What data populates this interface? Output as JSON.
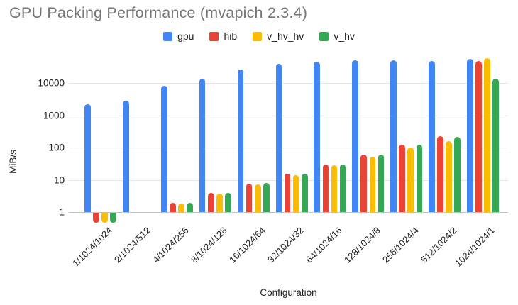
{
  "title": "GPU Packing Performance (mvapich 2.3.4)",
  "colors": {
    "title_text": "#757575",
    "axis_text": "#202124",
    "gridline": "#e6e6e6",
    "baseline": "#c4c4c4",
    "background": "#ffffff"
  },
  "chart_data": {
    "type": "bar",
    "title": "GPU Packing Performance (mvapich 2.3.4)",
    "xlabel": "Configuration",
    "ylabel": "MiB/s",
    "y_scale": "log",
    "y_ticks": [
      1,
      10,
      100,
      1000,
      10000
    ],
    "ylim": [
      0.4,
      100000
    ],
    "grid": true,
    "legend_position": "top",
    "categories": [
      "1/1024/1024",
      "2/1024/512",
      "4/1024/256",
      "8/1024/128",
      "16/1024/64",
      "32/1024/32",
      "64/1024/16",
      "128/1024/8",
      "256/1024/4",
      "512/1024/2",
      "1024/1024/1"
    ],
    "series": [
      {
        "name": "gpu",
        "color": "#4285F4",
        "values": [
          2200,
          2800,
          8300,
          13500,
          26000,
          40000,
          46000,
          50000,
          51000,
          49000,
          57000
        ]
      },
      {
        "name": "hib",
        "color": "#EA4335",
        "values": [
          0.5,
          null,
          1.9,
          4,
          7.5,
          15,
          29,
          60,
          120,
          230,
          47000
        ]
      },
      {
        "name": "v_hv_hv",
        "color": "#FBBC04",
        "values": [
          0.5,
          null,
          1.8,
          3.8,
          7.3,
          14,
          28,
          53,
          100,
          160,
          60000
        ]
      },
      {
        "name": "v_hv",
        "color": "#34A853",
        "values": [
          0.5,
          null,
          1.9,
          4,
          8,
          15,
          30,
          59,
          120,
          215,
          13500
        ]
      }
    ]
  }
}
